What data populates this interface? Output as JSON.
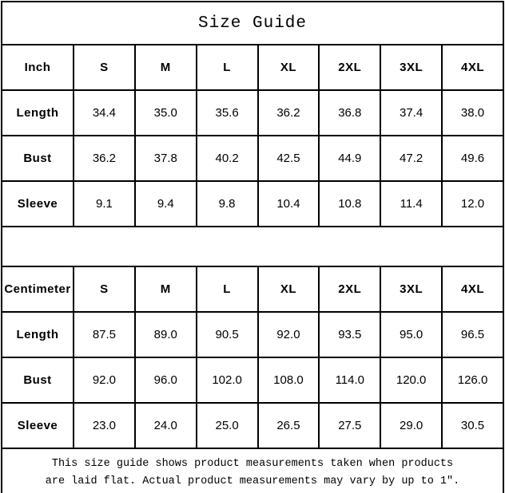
{
  "title": "Size Guide",
  "tables": {
    "inch": {
      "unit_label": "Inch",
      "columns": [
        "S",
        "M",
        "L",
        "XL",
        "2XL",
        "3XL",
        "4XL"
      ],
      "rows": [
        {
          "label": "Length",
          "values": [
            "34.4",
            "35.0",
            "35.6",
            "36.2",
            "36.8",
            "37.4",
            "38.0"
          ]
        },
        {
          "label": "Bust",
          "values": [
            "36.2",
            "37.8",
            "40.2",
            "42.5",
            "44.9",
            "47.2",
            "49.6"
          ]
        },
        {
          "label": "Sleeve",
          "values": [
            "9.1",
            "9.4",
            "9.8",
            "10.4",
            "10.8",
            "11.4",
            "12.0"
          ]
        }
      ]
    },
    "centimeter": {
      "unit_label": "Centimeter",
      "columns": [
        "S",
        "M",
        "L",
        "XL",
        "2XL",
        "3XL",
        "4XL"
      ],
      "rows": [
        {
          "label": "Length",
          "values": [
            "87.5",
            "89.0",
            "90.5",
            "92.0",
            "93.5",
            "95.0",
            "96.5"
          ]
        },
        {
          "label": "Bust",
          "values": [
            "92.0",
            "96.0",
            "102.0",
            "108.0",
            "114.0",
            "120.0",
            "126.0"
          ]
        },
        {
          "label": "Sleeve",
          "values": [
            "23.0",
            "24.0",
            "25.0",
            "26.5",
            "27.5",
            "29.0",
            "30.5"
          ]
        }
      ]
    }
  },
  "footer": {
    "line1": "This size guide shows product measurements taken when products",
    "line2": "are laid flat. Actual product measurements may vary by up to 1″."
  },
  "colors": {
    "background": "#ffffff",
    "border": "#000000",
    "text": "#000000"
  }
}
